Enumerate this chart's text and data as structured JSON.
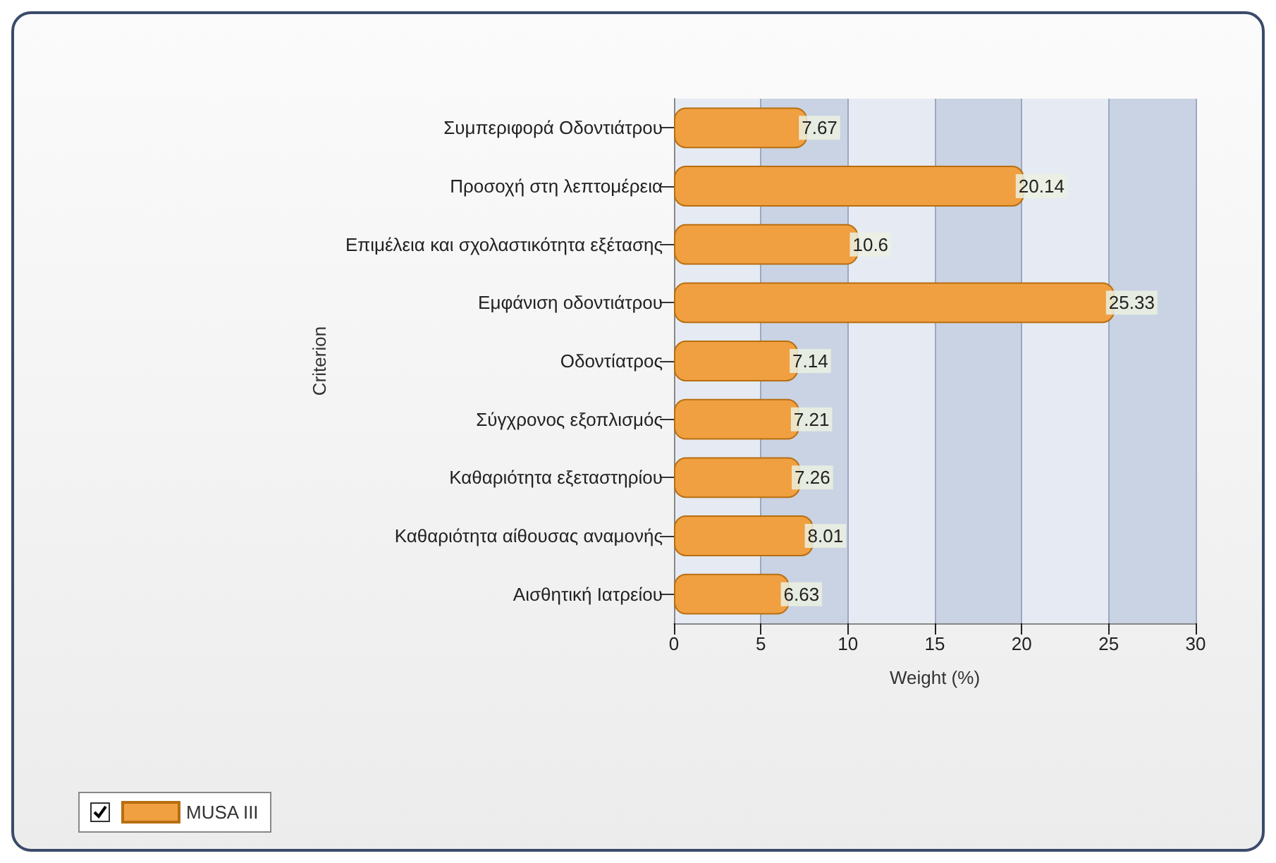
{
  "chart_data": {
    "type": "bar",
    "orientation": "horizontal",
    "xlabel": "Weight (%)",
    "ylabel": "Criterion",
    "categories": [
      "Συμπεριφορά Οδοντιάτρου",
      "Προσοχή στη λεπτομέρεια",
      "Επιμέλεια και σχολαστικότητα εξέτασης",
      "Εμφάνιση οδοντιάτρου",
      "Οδοντίατρος",
      "Σύγχρονος εξοπλισμός",
      "Καθαριότητα εξεταστηρίου",
      "Καθαριότητα αίθουσας αναμονής",
      "Αισθητική Ιατρείου"
    ],
    "series": [
      {
        "name": "MUSA III",
        "color": "#f0a040",
        "values": [
          7.67,
          20.14,
          10.6,
          25.33,
          7.14,
          7.21,
          7.26,
          8.01,
          6.63
        ]
      }
    ],
    "data_labels": true,
    "xlim": [
      0,
      30
    ],
    "xticks": [
      0,
      5,
      10,
      15,
      20,
      25,
      30
    ],
    "grid": "x",
    "legend": "bottom left"
  }
}
